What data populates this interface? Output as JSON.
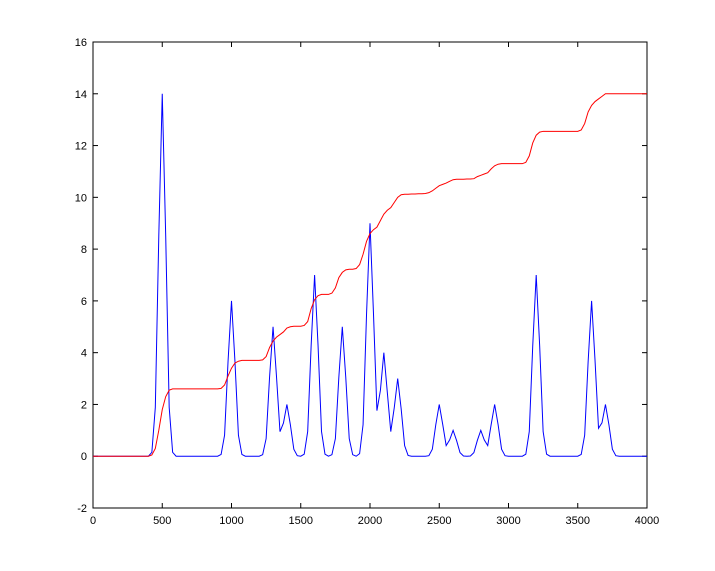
{
  "chart_data": {
    "type": "line",
    "x": [
      0,
      25,
      50,
      75,
      100,
      125,
      150,
      175,
      200,
      225,
      250,
      275,
      300,
      325,
      350,
      375,
      400,
      425,
      450,
      475,
      500,
      525,
      550,
      575,
      600,
      625,
      650,
      675,
      700,
      725,
      750,
      775,
      800,
      825,
      850,
      875,
      900,
      925,
      950,
      975,
      1000,
      1025,
      1050,
      1075,
      1100,
      1125,
      1150,
      1175,
      1200,
      1225,
      1250,
      1275,
      1300,
      1325,
      1350,
      1375,
      1400,
      1425,
      1450,
      1475,
      1500,
      1525,
      1550,
      1575,
      1600,
      1625,
      1650,
      1675,
      1700,
      1725,
      1750,
      1775,
      1800,
      1825,
      1850,
      1875,
      1900,
      1925,
      1950,
      1975,
      2000,
      2025,
      2050,
      2075,
      2100,
      2125,
      2150,
      2175,
      2200,
      2225,
      2250,
      2275,
      2300,
      2325,
      2350,
      2375,
      2400,
      2425,
      2450,
      2475,
      2500,
      2525,
      2550,
      2575,
      2600,
      2625,
      2650,
      2675,
      2700,
      2725,
      2750,
      2775,
      2800,
      2825,
      2850,
      2875,
      2900,
      2925,
      2950,
      2975,
      3000,
      3025,
      3050,
      3075,
      3100,
      3125,
      3150,
      3175,
      3200,
      3225,
      3250,
      3275,
      3300,
      3325,
      3350,
      3375,
      3400,
      3425,
      3450,
      3475,
      3500,
      3525,
      3550,
      3575,
      3600,
      3625,
      3650,
      3675,
      3700,
      3725,
      3750,
      3775,
      3800,
      3825,
      3850,
      3875,
      3900,
      3925,
      3950,
      3975,
      4000
    ],
    "series": [
      {
        "color": "#0000ff",
        "values": [
          0,
          0,
          0,
          0,
          0,
          0,
          0,
          0,
          0,
          0,
          0,
          0,
          0,
          0,
          0,
          0,
          0,
          0.15,
          1.89,
          8.5,
          14,
          8.5,
          1.89,
          0.15,
          0,
          0,
          0,
          0,
          0,
          0,
          0,
          0,
          0,
          0,
          0,
          0,
          0,
          0.07,
          0.81,
          3.66,
          6,
          3.66,
          0.81,
          0.07,
          0,
          0,
          0,
          0,
          0,
          0.06,
          0.68,
          3.07,
          5,
          3.07,
          0.95,
          1.28,
          2,
          1.22,
          0.27,
          0.02,
          0,
          0.08,
          0.95,
          4.27,
          7,
          4.27,
          0.95,
          0.08,
          0,
          0.06,
          0.68,
          3.05,
          5,
          3.05,
          0.68,
          0.06,
          0,
          0.1,
          1.22,
          5.49,
          9,
          5.53,
          1.76,
          2.54,
          4,
          2.47,
          0.95,
          1.87,
          3,
          1.83,
          0.41,
          0.03,
          0,
          0,
          0,
          0,
          0,
          0.02,
          0.27,
          1.22,
          2,
          1.23,
          0.41,
          0.63,
          1,
          0.61,
          0.14,
          0.01,
          0,
          0.01,
          0.14,
          0.61,
          1,
          0.63,
          0.41,
          1.23,
          2,
          1.22,
          0.27,
          0.02,
          0,
          0,
          0,
          0,
          0,
          0.08,
          0.95,
          4.27,
          7,
          4.27,
          0.95,
          0.08,
          0,
          0,
          0,
          0,
          0,
          0,
          0,
          0,
          0,
          0.07,
          0.81,
          3.66,
          6,
          3.68,
          1.08,
          1.29,
          2,
          1.22,
          0.27,
          0.02,
          0,
          0,
          0,
          0,
          0,
          0,
          0,
          0,
          0
        ]
      },
      {
        "color": "#ff0000",
        "values": [
          0,
          0,
          0,
          0,
          0,
          0,
          0,
          0,
          0,
          0,
          0,
          0,
          0,
          0,
          0,
          0,
          0,
          0.05,
          0.3,
          1.0,
          1.8,
          2.3,
          2.55,
          2.6,
          2.6,
          2.6,
          2.6,
          2.6,
          2.6,
          2.6,
          2.6,
          2.6,
          2.6,
          2.6,
          2.6,
          2.6,
          2.6,
          2.62,
          2.75,
          3.1,
          3.4,
          3.6,
          3.67,
          3.7,
          3.7,
          3.7,
          3.7,
          3.7,
          3.7,
          3.72,
          3.85,
          4.2,
          4.45,
          4.6,
          4.7,
          4.8,
          4.95,
          5,
          5.02,
          5.02,
          5.02,
          5.05,
          5.2,
          5.7,
          6.05,
          6.2,
          6.25,
          6.25,
          6.25,
          6.3,
          6.5,
          6.9,
          7.1,
          7.2,
          7.22,
          7.22,
          7.25,
          7.4,
          7.8,
          8.3,
          8.6,
          8.75,
          8.85,
          9.1,
          9.35,
          9.5,
          9.6,
          9.8,
          10,
          10.1,
          10.12,
          10.12,
          10.13,
          10.13,
          10.14,
          10.14,
          10.15,
          10.18,
          10.25,
          10.35,
          10.45,
          10.5,
          10.55,
          10.62,
          10.68,
          10.7,
          10.7,
          10.7,
          10.71,
          10.71,
          10.72,
          10.8,
          10.85,
          10.9,
          10.95,
          11.1,
          11.22,
          11.28,
          11.3,
          11.3,
          11.3,
          11.3,
          11.3,
          11.3,
          11.3,
          11.35,
          11.6,
          12.1,
          12.4,
          12.52,
          12.55,
          12.55,
          12.55,
          12.55,
          12.55,
          12.55,
          12.55,
          12.55,
          12.55,
          12.55,
          12.55,
          12.6,
          12.85,
          13.3,
          13.55,
          13.7,
          13.8,
          13.9,
          14,
          14,
          14,
          14,
          14,
          14,
          14,
          14,
          14,
          14,
          14,
          14,
          14
        ]
      }
    ],
    "xlim": [
      0,
      4000
    ],
    "xticks": [
      0,
      500,
      1000,
      1500,
      2000,
      2500,
      3000,
      3500,
      4000
    ],
    "ylim": [
      -2,
      16
    ],
    "yticks": [
      -2,
      0,
      2,
      4,
      6,
      8,
      10,
      12,
      14,
      16
    ]
  }
}
